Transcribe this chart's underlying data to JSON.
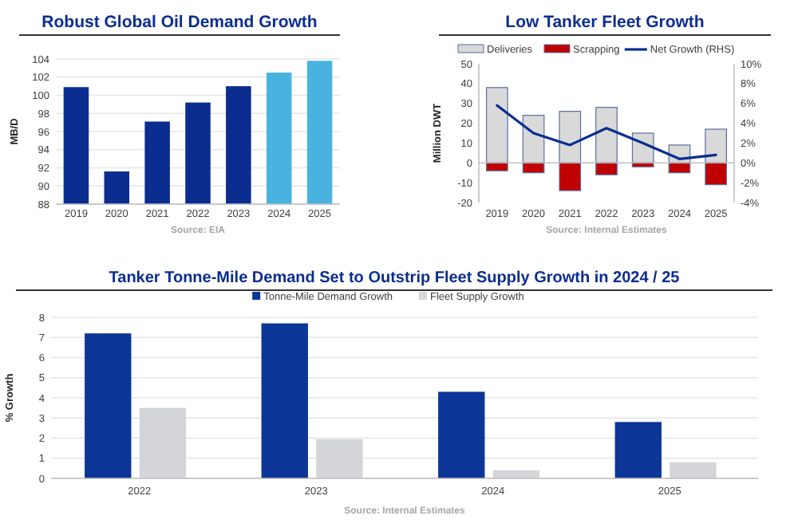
{
  "chart_data": [
    {
      "type": "bar",
      "title": "Robust Global Oil Demand Growth",
      "ylabel": "MB/D",
      "categories": [
        "2019",
        "2020",
        "2021",
        "2022",
        "2023",
        "2024",
        "2025"
      ],
      "values": [
        100.9,
        91.6,
        97.1,
        99.2,
        101.0,
        102.5,
        103.8
      ],
      "colors": [
        "#0b2d8f",
        "#0b2d8f",
        "#0b2d8f",
        "#0b2d8f",
        "#0b2d8f",
        "#49b3e0",
        "#49b3e0"
      ],
      "ylim": [
        88,
        104
      ],
      "yticks": [
        88,
        90,
        92,
        94,
        96,
        98,
        100,
        102,
        104
      ],
      "grid": "y",
      "annotations": [
        "Source: EIA"
      ]
    },
    {
      "type": "bar",
      "title": "Low Tanker Fleet Growth",
      "ylabel": "Million DWT",
      "categories": [
        "2019",
        "2020",
        "2021",
        "2022",
        "2023",
        "2024",
        "2025"
      ],
      "stacked": true,
      "legend": "top",
      "series": [
        {
          "name": "Deliveries",
          "color": "#d9d9d9",
          "values": [
            38,
            24,
            26,
            28,
            15,
            9,
            17
          ]
        },
        {
          "name": "Scrapping",
          "color": "#c00000",
          "values": [
            -4,
            -5,
            -14,
            -6,
            -2,
            -5,
            -11
          ]
        },
        {
          "name": "Net Growth (RHS)",
          "type": "line",
          "axis": "y2",
          "color": "#0b2d8f",
          "values": [
            5.8,
            3.0,
            1.8,
            3.5,
            2.0,
            0.4,
            0.8
          ]
        }
      ],
      "ylim": [
        -20,
        50
      ],
      "yticks": [
        -20,
        -10,
        0,
        10,
        20,
        30,
        40,
        50
      ],
      "y2lim": [
        -4,
        10
      ],
      "y2ticks": [
        {
          "value": -4,
          "label": "-4%"
        },
        {
          "value": -2,
          "label": "-2%"
        },
        {
          "value": 0,
          "label": "0%"
        },
        {
          "value": 2,
          "label": "2%"
        },
        {
          "value": 4,
          "label": "4%"
        },
        {
          "value": 6,
          "label": "6%"
        },
        {
          "value": 8,
          "label": "8%"
        },
        {
          "value": 10,
          "label": "10%"
        }
      ],
      "annotations": [
        "Source: Internal Estimates"
      ]
    },
    {
      "type": "bar",
      "title": "Tanker Tonne-Mile Demand Set to Outstrip Fleet Supply Growth in 2024 / 25",
      "ylabel": "% Growth",
      "categories": [
        "2022",
        "2023",
        "2024",
        "2025"
      ],
      "legend": "top",
      "series": [
        {
          "name": "Tonne-Mile Demand Growth",
          "color": "#0b3596",
          "values": [
            7.2,
            7.7,
            4.3,
            2.8
          ]
        },
        {
          "name": "Fleet Supply Growth",
          "color": "#d3d5d8",
          "values": [
            3.5,
            1.95,
            0.4,
            0.8
          ]
        }
      ],
      "ylim": [
        0,
        8
      ],
      "yticks": [
        0,
        1,
        2,
        3,
        4,
        5,
        6,
        7,
        8
      ],
      "grid": "y",
      "annotations": [
        "Source: Internal Estimates"
      ]
    }
  ]
}
